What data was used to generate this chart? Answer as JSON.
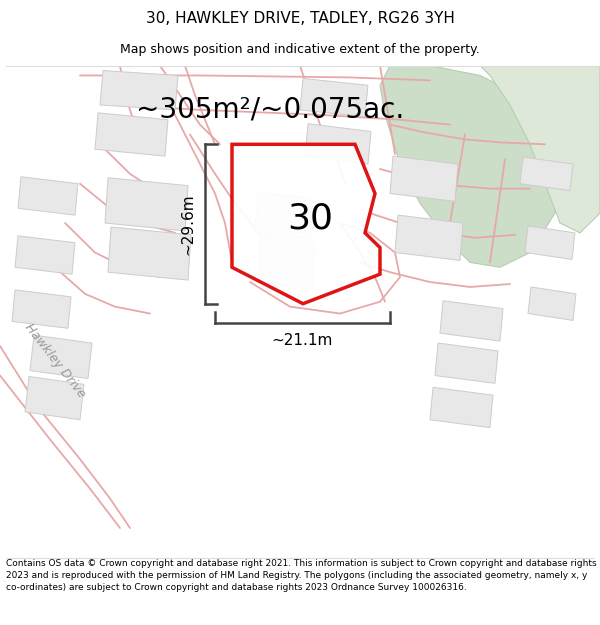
{
  "title": "30, HAWKLEY DRIVE, TADLEY, RG26 3YH",
  "subtitle": "Map shows position and indicative extent of the property.",
  "footer": "Contains OS data © Crown copyright and database right 2021. This information is subject to Crown copyright and database rights 2023 and is reproduced with the permission of HM Land Registry. The polygons (including the associated geometry, namely x, y co-ordinates) are subject to Crown copyright and database rights 2023 Ordnance Survey 100026316.",
  "area_label": "~305m²/~0.075ac.",
  "number_label": "30",
  "width_label": "~21.1m",
  "height_label": "~29.6m",
  "map_bg": "#f8f8f8",
  "plot_outline_color": "#dd0000",
  "plot_fill_color": "#ffffff",
  "road_color": "#e8a8a8",
  "building_fill": "#e8e8e8",
  "building_edge": "#cccccc",
  "green_fill": "#ccddc8",
  "green_edge": "#b8ccb4",
  "title_fontsize": 11,
  "subtitle_fontsize": 9,
  "footer_fontsize": 6.5,
  "area_fontsize": 20,
  "number_fontsize": 26,
  "dim_fontsize": 11,
  "road_label": "Hawkley Drive",
  "figsize": [
    6.0,
    6.25
  ],
  "dpi": 100
}
